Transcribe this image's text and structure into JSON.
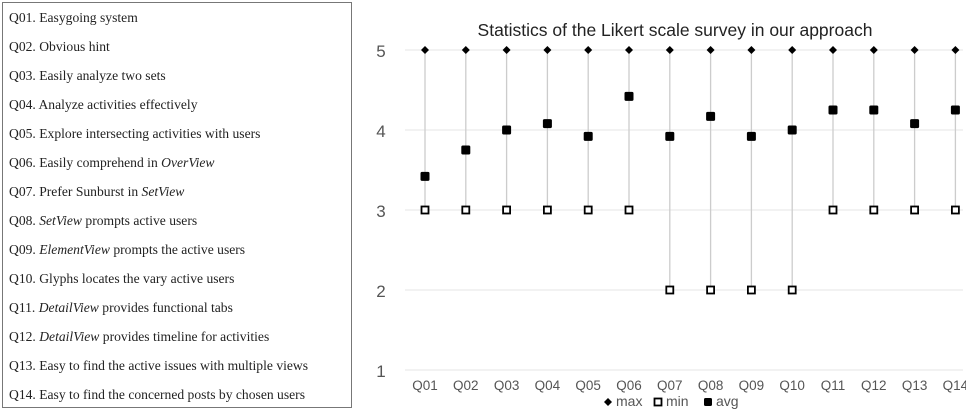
{
  "questions": [
    {
      "id": "Q01.",
      "parts": [
        {
          "t": "Easygoing system"
        }
      ]
    },
    {
      "id": "Q02.",
      "parts": [
        {
          "t": "Obvious hint"
        }
      ]
    },
    {
      "id": "Q03.",
      "parts": [
        {
          "t": "Easily analyze two sets"
        }
      ]
    },
    {
      "id": "Q04.",
      "parts": [
        {
          "t": "Analyze activities effectively"
        }
      ]
    },
    {
      "id": "Q05.",
      "parts": [
        {
          "t": "Explore intersecting activities with users"
        }
      ]
    },
    {
      "id": "Q06.",
      "parts": [
        {
          "t": "Easily comprehend in "
        },
        {
          "t": "OverView",
          "i": true
        }
      ]
    },
    {
      "id": "Q07.",
      "parts": [
        {
          "t": "Prefer Sunburst in "
        },
        {
          "t": "SetView",
          "i": true
        }
      ]
    },
    {
      "id": "Q08.",
      "parts": [
        {
          "t": "SetView",
          "i": true
        },
        {
          "t": " prompts active users"
        }
      ]
    },
    {
      "id": "Q09.",
      "parts": [
        {
          "t": "ElementView",
          "i": true
        },
        {
          "t": " prompts the active users"
        }
      ]
    },
    {
      "id": "Q10.",
      "parts": [
        {
          "t": "Glyphs locates the vary active users"
        }
      ]
    },
    {
      "id": "Q11.",
      "parts": [
        {
          "t": "DetailView",
          "i": true
        },
        {
          "t": " provides functional tabs"
        }
      ]
    },
    {
      "id": "Q12.",
      "parts": [
        {
          "t": "DetailView",
          "i": true
        },
        {
          "t": " provides timeline for activities"
        }
      ]
    },
    {
      "id": "Q13.",
      "parts": [
        {
          "t": "Easy to find the active issues with multiple views"
        }
      ]
    },
    {
      "id": "Q14.",
      "parts": [
        {
          "t": "Easy to find the concerned posts by chosen users"
        }
      ]
    }
  ],
  "chart_data": {
    "type": "scatter",
    "title": "Statistics of the Likert scale survey in our approach",
    "categories": [
      "Q01",
      "Q02",
      "Q03",
      "Q04",
      "Q05",
      "Q06",
      "Q07",
      "Q08",
      "Q09",
      "Q10",
      "Q11",
      "Q12",
      "Q13",
      "Q14"
    ],
    "series": [
      {
        "name": "max",
        "values": [
          5,
          5,
          5,
          5,
          5,
          5,
          5,
          5,
          5,
          5,
          5,
          5,
          5,
          5
        ]
      },
      {
        "name": "min",
        "values": [
          3,
          3,
          3,
          3,
          3,
          3,
          2,
          2,
          2,
          2,
          3,
          3,
          3,
          3
        ]
      },
      {
        "name": "avg",
        "values": [
          3.42,
          3.75,
          4.0,
          4.08,
          3.92,
          4.42,
          3.92,
          4.17,
          3.92,
          4.0,
          4.25,
          4.25,
          4.08,
          4.25
        ]
      }
    ],
    "yticks": [
      1,
      2,
      3,
      4,
      5
    ],
    "ylim": [
      1,
      5
    ],
    "grid": true,
    "legend": "bottom",
    "colors": {
      "marker": "#000000",
      "grid": "#e6e6e6",
      "range_line": "#cccccc",
      "text": "#555555"
    }
  }
}
